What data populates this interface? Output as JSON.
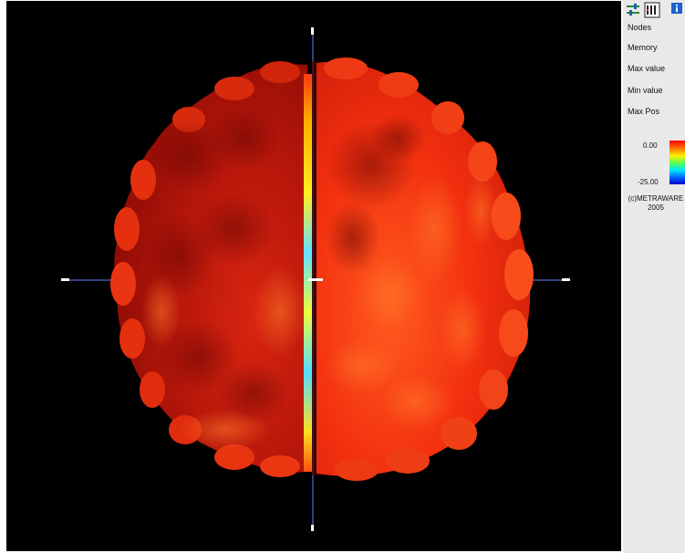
{
  "panel": {
    "toolbar": {
      "settings_icon": "sliders-icon",
      "display_icon": "bar-gauge-icon",
      "info_icon": "info-icon"
    },
    "nodes_label": "Nodes",
    "memory_label": "Memory",
    "max_value_label": "Max value",
    "min_value_label": "Min value",
    "max_pos_label": "Max Pos",
    "legend": {
      "max": "0.00",
      "min": "-25.00"
    },
    "copyright_line1": "(c)METRAWARE",
    "copyright_line2": "2005"
  },
  "colors": {
    "viewport_bg": "#000000",
    "panel_bg": "#e9e9e9",
    "surface_dark": "#9c0f06",
    "surface_bright": "#ff3a14",
    "axis": "#5566cc"
  }
}
